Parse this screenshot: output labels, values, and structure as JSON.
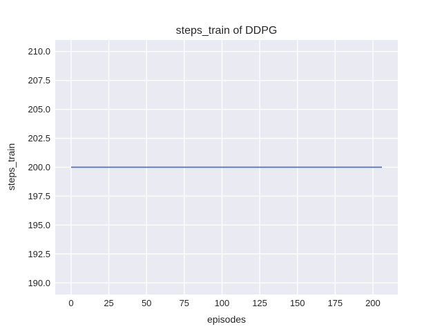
{
  "figure": {
    "title": "steps_train of DDPG",
    "xlabel": "episodes",
    "ylabel": "steps_train"
  },
  "colors": {
    "figure_background": "#FFFFFF",
    "plot_background": "#EAEAF2",
    "gridline": "#FFFFFF",
    "line": "#4C72B0",
    "text": "#262626"
  },
  "chart_data": {
    "type": "line",
    "title": "steps_train of DDPG",
    "xlabel": "episodes",
    "ylabel": "steps_train",
    "x_ticks": [
      0,
      25,
      50,
      75,
      100,
      125,
      150,
      175,
      200
    ],
    "x_tick_labels": [
      "0",
      "25",
      "50",
      "75",
      "100",
      "125",
      "150",
      "175",
      "200"
    ],
    "y_ticks": [
      190.0,
      192.5,
      195.0,
      197.5,
      200.0,
      202.5,
      205.0,
      207.5,
      210.0
    ],
    "y_tick_labels": [
      "190.0",
      "192.5",
      "195.0",
      "197.5",
      "200.0",
      "202.5",
      "205.0",
      "207.5",
      "210.0"
    ],
    "xlim": [
      -10.5,
      216.5
    ],
    "ylim": [
      189.0,
      211.0
    ],
    "grid": true,
    "legend_visible": false,
    "series": [
      {
        "name": "steps_train",
        "color": "#4C72B0",
        "constant_value": 200,
        "points": [
          [
            0,
            200
          ],
          [
            206,
            200
          ]
        ]
      }
    ]
  }
}
